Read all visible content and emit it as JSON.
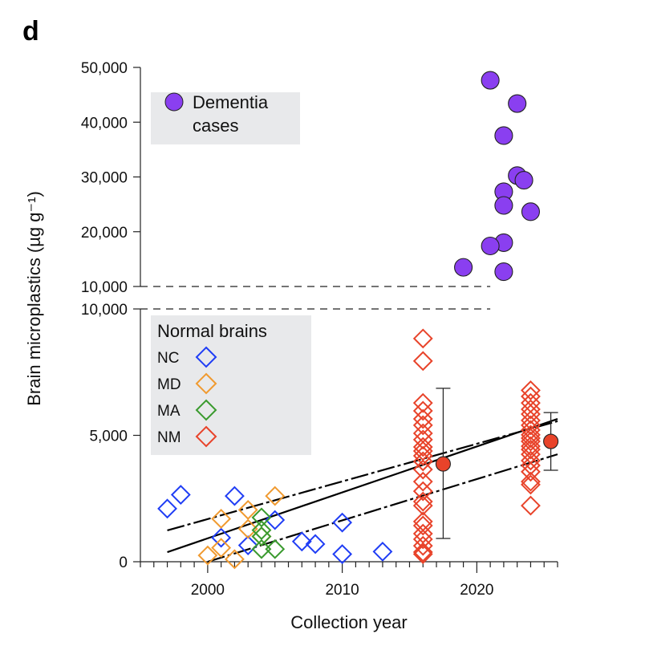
{
  "panel_label": "d",
  "chart_data": {
    "type": "scatter",
    "title": "",
    "xlabel": "Collection year",
    "ylabel": "Brain microplastics (µg g⁻¹)",
    "xlim": [
      1995,
      2026
    ],
    "x_ticks": [
      2000,
      2010,
      2020
    ],
    "x_minor_step": 1,
    "broken_y_axis": true,
    "upper_panel": {
      "ylim": [
        10000,
        50000
      ],
      "y_ticks": [
        10000,
        20000,
        30000,
        40000,
        50000
      ],
      "y_tick_labels": [
        "10,000",
        "20,000",
        "30,000",
        "40,000",
        "50,000"
      ]
    },
    "lower_panel": {
      "ylim": [
        0,
        10000
      ],
      "y_ticks": [
        0,
        5000,
        10000
      ],
      "y_tick_labels": [
        "0",
        "5,000",
        "10,000"
      ]
    },
    "legends": {
      "dementia": {
        "label_line1": "Dementia",
        "label_line2": "cases",
        "placement": "top-left"
      },
      "normal": {
        "title": "Normal brains",
        "placement": "middle-left"
      }
    },
    "series": [
      {
        "name": "Dementia cases",
        "marker": "circle",
        "color": "#8a3ff0",
        "panel": "upper",
        "points": [
          [
            2021,
            47650
          ],
          [
            2023,
            43400
          ],
          [
            2022,
            37550
          ],
          [
            2023,
            30250
          ],
          [
            2023.5,
            29400
          ],
          [
            2022,
            27300
          ],
          [
            2022,
            24800
          ],
          [
            2024,
            23650
          ],
          [
            2022,
            18000
          ],
          [
            2021,
            17400
          ],
          [
            2019,
            13500
          ],
          [
            2022,
            12700
          ]
        ]
      },
      {
        "name": "NC",
        "marker": "diamond",
        "color": "#1f3df5",
        "panel": "lower",
        "points": [
          [
            1997,
            2100
          ],
          [
            1998,
            2650
          ],
          [
            2001,
            950
          ],
          [
            2002,
            2600
          ],
          [
            2003,
            650
          ],
          [
            2005,
            1650
          ],
          [
            2007,
            800
          ],
          [
            2008,
            700
          ],
          [
            2010,
            1550
          ],
          [
            2010,
            300
          ],
          [
            2013,
            400
          ]
        ]
      },
      {
        "name": "MD",
        "marker": "diamond",
        "color": "#f09a30",
        "panel": "lower",
        "points": [
          [
            2000,
            250
          ],
          [
            2001,
            1700
          ],
          [
            2001,
            550
          ],
          [
            2002,
            100
          ],
          [
            2003,
            2050
          ],
          [
            2003,
            1300
          ],
          [
            2005,
            2600
          ],
          [
            2004,
            1000
          ]
        ]
      },
      {
        "name": "MA",
        "marker": "diamond",
        "color": "#3a9a2e",
        "panel": "lower",
        "points": [
          [
            2004,
            1750
          ],
          [
            2004,
            1250
          ],
          [
            2004,
            1000
          ],
          [
            2004,
            500
          ],
          [
            2005,
            500
          ]
        ]
      },
      {
        "name": "NM",
        "marker": "diamond",
        "color": "#e8432a",
        "panel": "lower",
        "points": [
          [
            2016,
            8830
          ],
          [
            2016,
            7940
          ],
          [
            2016,
            6280
          ],
          [
            2016,
            5970
          ],
          [
            2016,
            5650
          ],
          [
            2016,
            5400
          ],
          [
            2016,
            5080
          ],
          [
            2016,
            4830
          ],
          [
            2016,
            4540
          ],
          [
            2016,
            4380
          ],
          [
            2016,
            4190
          ],
          [
            2016,
            3970
          ],
          [
            2016,
            3650
          ],
          [
            2016,
            3170
          ],
          [
            2016,
            2790
          ],
          [
            2016,
            2380
          ],
          [
            2016,
            2220
          ],
          [
            2016,
            1590
          ],
          [
            2016,
            1430
          ],
          [
            2016,
            1110
          ],
          [
            2016,
            890
          ],
          [
            2016,
            630
          ],
          [
            2016,
            380
          ],
          [
            2016,
            300
          ],
          [
            2024,
            6780
          ],
          [
            2024,
            6540
          ],
          [
            2024,
            6280
          ],
          [
            2024,
            6030
          ],
          [
            2024,
            5840
          ],
          [
            2024,
            5590
          ],
          [
            2024,
            5400
          ],
          [
            2024,
            5210
          ],
          [
            2024,
            5020
          ],
          [
            2024,
            4890
          ],
          [
            2024,
            4760
          ],
          [
            2024,
            4570
          ],
          [
            2024,
            4440
          ],
          [
            2024,
            4250
          ],
          [
            2024,
            4000
          ],
          [
            2024,
            3810
          ],
          [
            2024,
            3560
          ],
          [
            2024,
            3170
          ],
          [
            2024,
            3050
          ],
          [
            2024,
            2220
          ]
        ]
      }
    ],
    "group_means": [
      {
        "name": "NM 2016 mean",
        "color": "#e8432a",
        "x": 2017.5,
        "y": 3870,
        "err_low": 920,
        "err_high": 6860
      },
      {
        "name": "NM 2024 mean",
        "color": "#e8432a",
        "x": 2025.5,
        "y": 4760,
        "err_low": 3620,
        "err_high": 5900
      }
    ],
    "regression": {
      "fit": {
        "x": [
          1997,
          2026
        ],
        "y": [
          380,
          5650
        ],
        "style": "solid"
      },
      "ci_upper": {
        "x": [
          1997,
          2026
        ],
        "y": [
          1240,
          5560
        ],
        "style": "dashed"
      },
      "ci_lower": {
        "x": [
          2000,
          2026
        ],
        "y": [
          0,
          4250
        ],
        "style": "dashed"
      }
    },
    "axis_break": {
      "style": "dashed",
      "x_end": 2021
    },
    "grid": false
  }
}
